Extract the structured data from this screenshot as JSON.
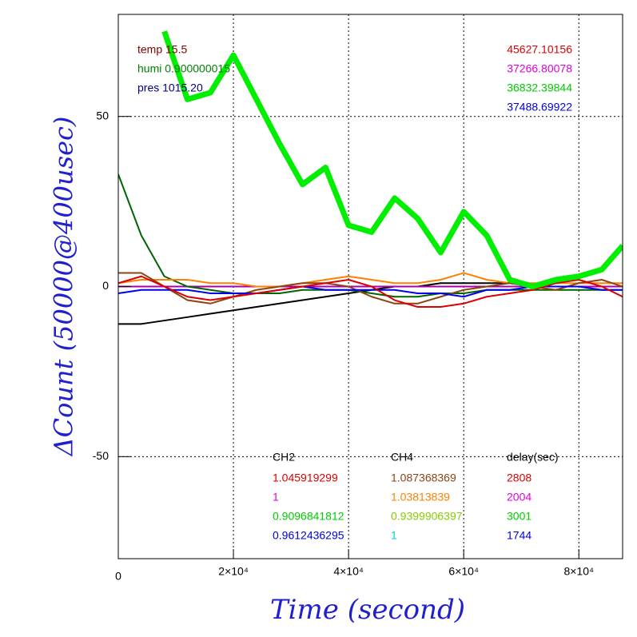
{
  "chart_data": {
    "type": "line",
    "xlabel": "Time (second)",
    "ylabel": "ΔCount (50000@400usec)",
    "xlim": [
      0,
      87600
    ],
    "ylim": [
      -80,
      80
    ],
    "xticks": [
      0,
      {
        "value": 20000,
        "label": "2×10⁴"
      },
      {
        "value": 40000,
        "label": "4×10⁴"
      },
      {
        "value": 60000,
        "label": "6×10⁴"
      },
      {
        "value": 80000,
        "label": "8×10⁴"
      }
    ],
    "yticks": [
      -50,
      0,
      50
    ],
    "grid": true,
    "x": [
      0,
      4000,
      8000,
      12000,
      16000,
      20000,
      24000,
      28000,
      32000,
      36000,
      40000,
      44000,
      48000,
      52000,
      56000,
      60000,
      64000,
      68000,
      72000,
      76000,
      80000,
      84000,
      87600
    ],
    "series": [
      {
        "color": "#000000",
        "values": [
          -11,
          -11,
          -10,
          -9,
          -8,
          -7,
          -6,
          -5,
          -4,
          -3,
          -2,
          -1,
          0,
          0,
          1,
          1,
          1,
          1,
          0,
          0,
          0,
          0,
          0
        ]
      },
      {
        "color": "#aa00aa",
        "values": [
          0,
          0,
          0,
          0,
          0,
          0,
          0,
          0,
          0,
          0,
          0,
          0,
          0,
          0,
          0,
          0,
          0,
          0,
          0,
          0,
          0,
          0,
          0
        ]
      },
      {
        "color": "#006400",
        "values": [
          33,
          15,
          3,
          0,
          -1,
          -2,
          -2,
          -2,
          -1,
          -1,
          -1,
          -2,
          -3,
          -3,
          -2,
          -2,
          -1,
          -1,
          -1,
          -1,
          -1,
          -1,
          -1
        ]
      },
      {
        "color": "#ff8000",
        "values": [
          1,
          2,
          2,
          2,
          1,
          1,
          0,
          0,
          1,
          2,
          3,
          2,
          1,
          1,
          2,
          4,
          2,
          1,
          1,
          1,
          1,
          1,
          1
        ]
      },
      {
        "color": "#8b4513",
        "values": [
          4,
          4,
          0,
          -4,
          -5,
          -3,
          -1,
          0,
          1,
          1,
          0,
          -3,
          -5,
          -5,
          -3,
          -1,
          0,
          1,
          0,
          -1,
          1,
          2,
          0
        ]
      },
      {
        "color": "#0000ee",
        "values": [
          -2,
          -1,
          -1,
          -1,
          -2,
          -2,
          -2,
          -1,
          0,
          -1,
          -1,
          -1,
          -1,
          -2,
          -2,
          -3,
          -1,
          -1,
          0,
          0,
          0,
          -1,
          -1
        ]
      },
      {
        "color": "#dd0000",
        "values": [
          1,
          3,
          0,
          -3,
          -4,
          -3,
          -2,
          -1,
          0,
          1,
          2,
          0,
          -4,
          -6,
          -6,
          -5,
          -3,
          -2,
          -1,
          1,
          2,
          0,
          -3
        ]
      },
      {
        "color": "#00ee00",
        "width": 7,
        "values": [
          null,
          null,
          75,
          55,
          57,
          68,
          55,
          42,
          30,
          35,
          18,
          16,
          26,
          20,
          10,
          22,
          15,
          2,
          0,
          2,
          3,
          5,
          12
        ]
      }
    ],
    "info": [
      {
        "text": "temp 15.5",
        "color": "#800000"
      },
      {
        "text": "humi 0.900000015",
        "color": "#008000"
      },
      {
        "text": "pres 1015.20",
        "color": "#000080"
      }
    ],
    "counts": [
      {
        "text": "45627.10156",
        "color": "#dd0000"
      },
      {
        "text": "37266.80078",
        "color": "#dd00dd"
      },
      {
        "text": "36832.39844",
        "color": "#00cc00"
      },
      {
        "text": "37488.69922",
        "color": "#0000dd"
      }
    ],
    "table": {
      "headers": [
        "CH2",
        "CH4",
        "delay(sec)"
      ],
      "rows": [
        [
          {
            "text": "1.045919299",
            "color": "#dd0000"
          },
          {
            "text": "1.087368369",
            "color": "#8b4513"
          },
          {
            "text": "2808",
            "color": "#dd0000"
          }
        ],
        [
          {
            "text": "1",
            "color": "#dd00dd"
          },
          {
            "text": "1.03813839",
            "color": "#ff8000"
          },
          {
            "text": "2004",
            "color": "#dd00dd"
          }
        ],
        [
          {
            "text": "0.9096841812",
            "color": "#00cc00"
          },
          {
            "text": "0.9399906397",
            "color": "#88cc00"
          },
          {
            "text": "3001",
            "color": "#00cc00"
          }
        ],
        [
          {
            "text": "0.9612436295",
            "color": "#0000dd"
          },
          {
            "text": "1",
            "color": "#00cccc"
          },
          {
            "text": "1744",
            "color": "#0000dd"
          }
        ]
      ]
    }
  }
}
